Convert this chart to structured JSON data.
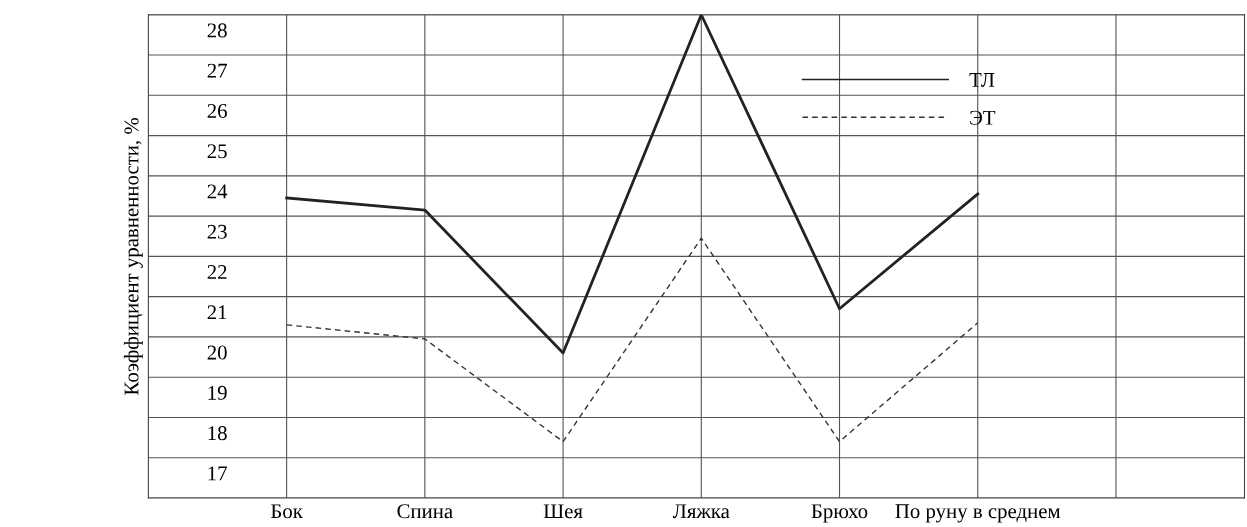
{
  "chart_data": {
    "type": "line",
    "ylabel": "Коэффициент уравненности, %",
    "categories": [
      "Бок",
      "Спина",
      "Шея",
      "Ляжка",
      "Брюхо",
      "По руну в среднем"
    ],
    "series": [
      {
        "name": "ТЛ",
        "color": "#222222",
        "line_style": "solid",
        "values": [
          23.45,
          23.15,
          19.6,
          28.0,
          20.7,
          23.55
        ]
      },
      {
        "name": "ЭТ",
        "color": "#333333",
        "line_style": "dashed",
        "values": [
          20.3,
          19.95,
          17.4,
          22.45,
          17.4,
          20.35
        ]
      }
    ],
    "ylim": [
      16,
      28
    ],
    "yticks": [
      {
        "value": 16,
        "label": null
      },
      17,
      18,
      19,
      20,
      21,
      22,
      23,
      24,
      25,
      26,
      27,
      28
    ],
    "grid": true,
    "legend": "top right",
    "marker": "none"
  }
}
